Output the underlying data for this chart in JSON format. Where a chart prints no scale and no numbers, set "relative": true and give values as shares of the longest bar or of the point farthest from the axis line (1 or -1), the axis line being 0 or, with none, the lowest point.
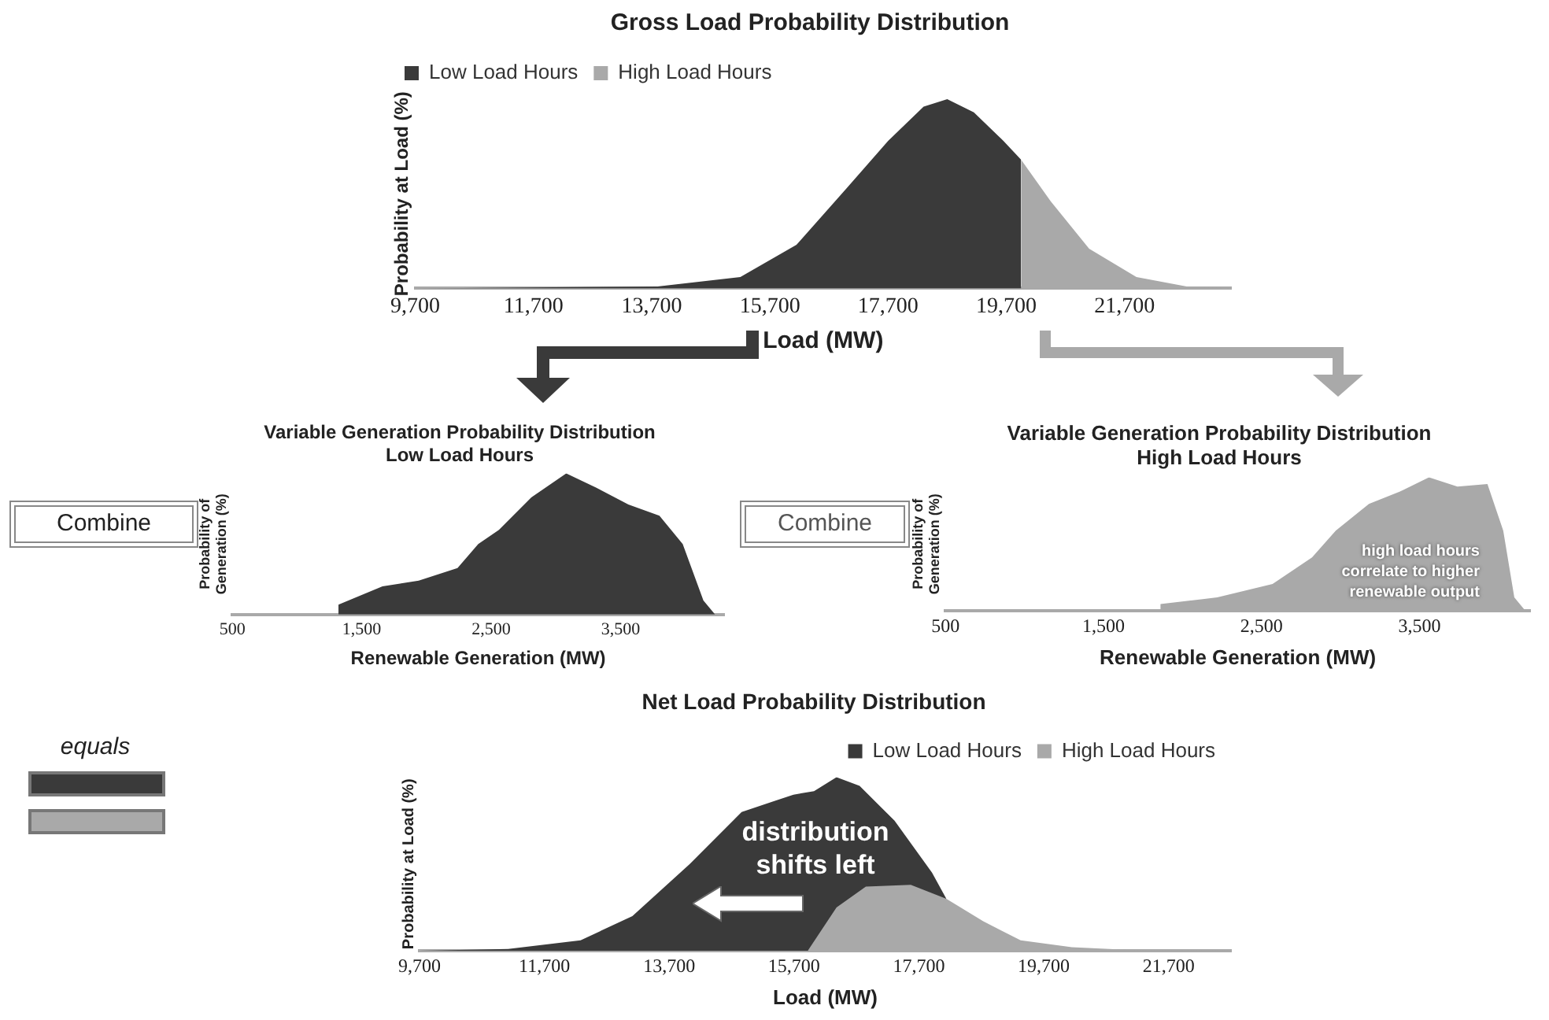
{
  "chart_data": [
    {
      "type": "area",
      "title": "Gross Load Probability Distribution",
      "xlabel": "Load (MW)",
      "ylabel": "Probability at Load (%)",
      "relative": true,
      "legend": "top left",
      "xlim": [
        9700,
        23500
      ],
      "xticks": [
        {
          "value": 9700,
          "label": "9,700"
        },
        {
          "value": 11700,
          "label": "11,700"
        },
        {
          "value": 13700,
          "label": "13,700"
        },
        {
          "value": 15700,
          "label": "15,700"
        },
        {
          "value": 17700,
          "label": "17,700"
        },
        {
          "value": 19700,
          "label": "19,700"
        },
        {
          "value": 21700,
          "label": "21,700"
        }
      ],
      "series": [
        {
          "name": "Low Load Hours",
          "color": "#3a3a3a",
          "x": [
            9700,
            13800,
            15200,
            16150,
            17000,
            17700,
            18300,
            18700,
            19150,
            19650,
            19950
          ],
          "values": [
            0,
            0.01,
            0.06,
            0.23,
            0.53,
            0.78,
            0.96,
            1,
            0.93,
            0.78,
            0.68
          ]
        },
        {
          "name": "High Load Hours",
          "color": "#a9a9a9",
          "x": [
            19950,
            20450,
            21100,
            21900,
            22750,
            23500
          ],
          "values": [
            0.68,
            0.46,
            0.21,
            0.06,
            0.01,
            0
          ]
        }
      ]
    },
    {
      "type": "area",
      "title": "Variable Generation Probability Distribution",
      "subtitle": "Low Load Hours",
      "xlabel": "Renewable Generation (MW)",
      "ylabel": "Probability of Generation (%)",
      "relative": true,
      "xlim": [
        500,
        4300
      ],
      "xticks": [
        {
          "value": 500,
          "label": "500"
        },
        {
          "value": 1500,
          "label": "1,500"
        },
        {
          "value": 2500,
          "label": "2,500"
        },
        {
          "value": 3500,
          "label": "3,500"
        }
      ],
      "annotations": [
        "Combine"
      ],
      "series": [
        {
          "color": "#3a3a3a",
          "x": [
            1320,
            1660,
            1940,
            2240,
            2400,
            2560,
            2810,
            3080,
            3310,
            3560,
            3800,
            3980,
            4140,
            4230
          ],
          "values": [
            0.07,
            0.2,
            0.24,
            0.33,
            0.5,
            0.6,
            0.83,
            1,
            0.9,
            0.78,
            0.7,
            0.5,
            0.1,
            0
          ]
        }
      ]
    },
    {
      "type": "area",
      "title": "Variable Generation Probability Distribution",
      "subtitle": "High Load Hours",
      "xlabel": "Renewable Generation (MW)",
      "ylabel": "Probability of Generation (%)",
      "relative": true,
      "xlim": [
        500,
        4200
      ],
      "xticks": [
        {
          "value": 500,
          "label": "500"
        },
        {
          "value": 1500,
          "label": "1,500"
        },
        {
          "value": 2500,
          "label": "2,500"
        },
        {
          "value": 3500,
          "label": "3,500"
        }
      ],
      "annotations": [
        "Combine",
        "high load hours correlate to higher renewable output"
      ],
      "series": [
        {
          "color": "#a9a9a9",
          "x": [
            1860,
            2220,
            2570,
            2820,
            2970,
            3180,
            3390,
            3560,
            3740,
            3930,
            4030,
            4100,
            4170
          ],
          "values": [
            0.05,
            0.1,
            0.2,
            0.4,
            0.6,
            0.8,
            0.9,
            1,
            0.93,
            0.95,
            0.6,
            0.1,
            0
          ]
        }
      ]
    },
    {
      "type": "area",
      "title": "Net Load Probability Distribution",
      "xlabel": "Load (MW)",
      "ylabel": "Probability at Load (%)",
      "relative": true,
      "legend": "top right",
      "xlim": [
        9700,
        22700
      ],
      "xticks": [
        {
          "value": 9700,
          "label": "9,700"
        },
        {
          "value": 11700,
          "label": "11,700"
        },
        {
          "value": 13700,
          "label": "13,700"
        },
        {
          "value": 15700,
          "label": "15,700"
        },
        {
          "value": 17700,
          "label": "17,700"
        },
        {
          "value": 19700,
          "label": "19,700"
        },
        {
          "value": 21700,
          "label": "21,700"
        }
      ],
      "annotations": [
        "equals",
        "distribution shifts left"
      ],
      "series": [
        {
          "name": "Low Load Hours",
          "color": "#3a3a3a",
          "x": [
            9700,
            11120,
            12280,
            13110,
            14030,
            14860,
            15690,
            16020,
            16380,
            16750,
            17310,
            17910,
            18140
          ],
          "values": [
            0,
            0.01,
            0.06,
            0.2,
            0.5,
            0.8,
            0.9,
            0.92,
            1,
            0.95,
            0.75,
            0.45,
            0.3
          ]
        },
        {
          "name": "High Load Hours",
          "color": "#a9a9a9",
          "x": [
            15920,
            16380,
            16850,
            17570,
            18140,
            18730,
            19330,
            20150,
            21080,
            22700
          ],
          "values": [
            0,
            0.25,
            0.37,
            0.38,
            0.3,
            0.17,
            0.06,
            0.02,
            0.005,
            0
          ]
        }
      ]
    }
  ]
}
